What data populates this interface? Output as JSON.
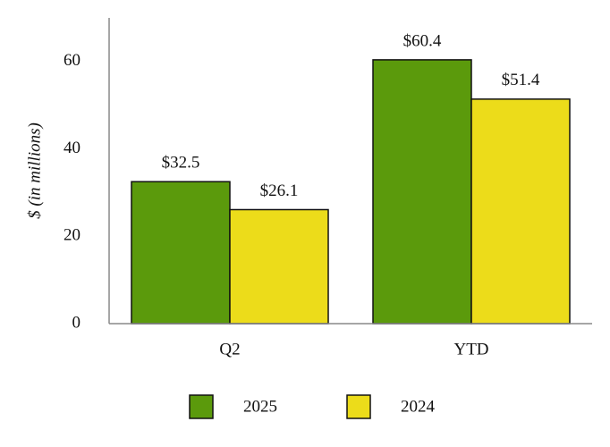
{
  "chart_data": {
    "type": "bar",
    "y_label": "$ (in millions)",
    "categories": [
      "Q2",
      "YTD"
    ],
    "series": [
      {
        "name": "2025",
        "color": "#5b9a0c",
        "values": [
          32.5,
          60.4
        ],
        "value_labels": [
          "$32.5",
          "$60.4"
        ]
      },
      {
        "name": "2024",
        "color": "#ecdc1a",
        "values": [
          26.1,
          51.4
        ],
        "value_labels": [
          "$26.1",
          "$51.4"
        ]
      }
    ],
    "ylim": [
      0,
      70
    ],
    "yticks": [
      0,
      20,
      40,
      60
    ],
    "grid": false,
    "legend": "bottom"
  }
}
